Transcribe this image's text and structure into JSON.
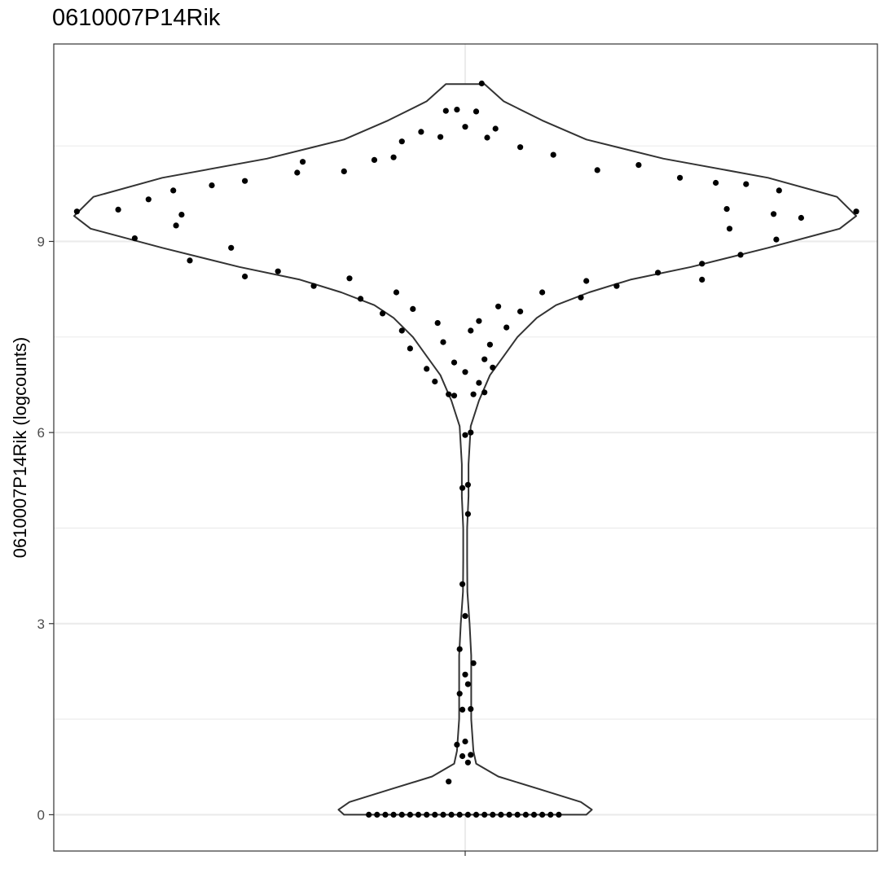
{
  "chart_data": {
    "type": "violin",
    "title": "0610007P14Rik",
    "xlabel": "",
    "ylabel": "0610007P14Rik (logcounts)",
    "ylim": [
      -0.57,
      12.1
    ],
    "yticks": [
      0,
      3,
      6,
      9
    ],
    "ytick_labels": [
      "0",
      "3",
      "6",
      "9"
    ],
    "xticks": [
      ""
    ],
    "grid": true,
    "theme": "bw",
    "colors": {
      "outline": "#333333",
      "points": "#000000",
      "grid": "#ebebeb",
      "panel_border": "#333333"
    },
    "violin_profile": [
      [
        11.47,
        0.07
      ],
      [
        11.2,
        0.14
      ],
      [
        10.9,
        0.28
      ],
      [
        10.6,
        0.44
      ],
      [
        10.3,
        0.72
      ],
      [
        10.0,
        1.1
      ],
      [
        9.7,
        1.35
      ],
      [
        9.4,
        1.42
      ],
      [
        9.2,
        1.36
      ],
      [
        8.9,
        1.1
      ],
      [
        8.6,
        0.82
      ],
      [
        8.4,
        0.6
      ],
      [
        8.2,
        0.45
      ],
      [
        8.0,
        0.33
      ],
      [
        7.8,
        0.26
      ],
      [
        7.5,
        0.19
      ],
      [
        7.2,
        0.14
      ],
      [
        6.9,
        0.09
      ],
      [
        6.5,
        0.05
      ],
      [
        6.1,
        0.02
      ],
      [
        5.5,
        0.012
      ],
      [
        5.0,
        0.012
      ],
      [
        4.5,
        0.007
      ],
      [
        4.0,
        0.007
      ],
      [
        3.5,
        0.008
      ],
      [
        3.0,
        0.016
      ],
      [
        2.5,
        0.022
      ],
      [
        2.0,
        0.022
      ],
      [
        1.5,
        0.022
      ],
      [
        1.0,
        0.03
      ],
      [
        0.8,
        0.04
      ],
      [
        0.6,
        0.12
      ],
      [
        0.4,
        0.27
      ],
      [
        0.2,
        0.42
      ],
      [
        0.08,
        0.46
      ],
      [
        0.0,
        0.44
      ]
    ],
    "points": [
      [
        0.06,
        11.48
      ],
      [
        -0.07,
        11.05
      ],
      [
        -0.03,
        11.07
      ],
      [
        0.04,
        11.04
      ],
      [
        -0.16,
        10.72
      ],
      [
        0.0,
        10.8
      ],
      [
        0.11,
        10.77
      ],
      [
        -0.23,
        10.57
      ],
      [
        -0.09,
        10.64
      ],
      [
        0.08,
        10.63
      ],
      [
        -0.33,
        10.28
      ],
      [
        -0.26,
        10.32
      ],
      [
        0.2,
        10.48
      ],
      [
        0.32,
        10.36
      ],
      [
        -0.59,
        10.25
      ],
      [
        -0.44,
        10.1
      ],
      [
        0.63,
        10.2
      ],
      [
        0.48,
        10.12
      ],
      [
        -0.8,
        9.95
      ],
      [
        -0.61,
        10.08
      ],
      [
        0.78,
        10.0
      ],
      [
        0.91,
        9.92
      ],
      [
        -1.06,
        9.8
      ],
      [
        -0.92,
        9.88
      ],
      [
        1.14,
        9.8
      ],
      [
        1.02,
        9.9
      ],
      [
        -1.41,
        9.47
      ],
      [
        -1.26,
        9.5
      ],
      [
        1.42,
        9.47
      ],
      [
        1.22,
        9.37
      ],
      [
        -1.15,
        9.66
      ],
      [
        -1.03,
        9.42
      ],
      [
        1.12,
        9.43
      ],
      [
        0.95,
        9.51
      ],
      [
        -1.2,
        9.05
      ],
      [
        -1.05,
        9.25
      ],
      [
        1.13,
        9.03
      ],
      [
        0.96,
        9.2
      ],
      [
        -1.0,
        8.7
      ],
      [
        -0.85,
        8.9
      ],
      [
        1.0,
        8.79
      ],
      [
        0.86,
        8.65
      ],
      [
        -0.8,
        8.45
      ],
      [
        -0.68,
        8.53
      ],
      [
        0.86,
        8.4
      ],
      [
        0.7,
        8.51
      ],
      [
        -0.55,
        8.3
      ],
      [
        -0.42,
        8.42
      ],
      [
        0.55,
        8.3
      ],
      [
        0.44,
        8.38
      ],
      [
        -0.38,
        8.1
      ],
      [
        -0.25,
        8.2
      ],
      [
        0.42,
        8.12
      ],
      [
        0.28,
        8.2
      ],
      [
        -0.3,
        7.87
      ],
      [
        -0.19,
        7.94
      ],
      [
        0.2,
        7.9
      ],
      [
        0.12,
        7.98
      ],
      [
        -0.23,
        7.6
      ],
      [
        -0.1,
        7.72
      ],
      [
        0.15,
        7.65
      ],
      [
        0.05,
        7.75
      ],
      [
        -0.2,
        7.32
      ],
      [
        -0.08,
        7.42
      ],
      [
        0.09,
        7.38
      ],
      [
        0.02,
        7.6
      ],
      [
        -0.14,
        7.0
      ],
      [
        -0.04,
        7.1
      ],
      [
        0.07,
        7.15
      ],
      [
        0.1,
        7.02
      ],
      [
        -0.11,
        6.8
      ],
      [
        0.0,
        6.95
      ],
      [
        0.05,
        6.78
      ],
      [
        -0.06,
        6.6
      ],
      [
        0.07,
        6.63
      ],
      [
        -0.04,
        6.58
      ],
      [
        0.03,
        6.6
      ],
      [
        0.0,
        5.96
      ],
      [
        0.02,
        6.0
      ],
      [
        -0.01,
        5.13
      ],
      [
        0.01,
        5.18
      ],
      [
        0.01,
        4.72
      ],
      [
        -0.01,
        3.62
      ],
      [
        0.0,
        3.12
      ],
      [
        -0.02,
        2.6
      ],
      [
        0.03,
        2.38
      ],
      [
        0.0,
        2.2
      ],
      [
        0.01,
        2.05
      ],
      [
        -0.02,
        1.9
      ],
      [
        -0.01,
        1.65
      ],
      [
        0.02,
        1.66
      ],
      [
        -0.03,
        1.1
      ],
      [
        0.0,
        1.15
      ],
      [
        -0.01,
        0.92
      ],
      [
        0.02,
        0.94
      ],
      [
        0.01,
        0.82
      ],
      [
        -0.06,
        0.52
      ],
      [
        -0.35,
        0.0
      ],
      [
        -0.32,
        0.0
      ],
      [
        -0.29,
        0.0
      ],
      [
        -0.26,
        0.0
      ],
      [
        -0.23,
        0.0
      ],
      [
        -0.2,
        0.0
      ],
      [
        -0.17,
        0.0
      ],
      [
        -0.14,
        0.0
      ],
      [
        -0.11,
        0.0
      ],
      [
        -0.08,
        0.0
      ],
      [
        -0.05,
        0.0
      ],
      [
        -0.02,
        0.0
      ],
      [
        0.01,
        0.0
      ],
      [
        0.04,
        0.0
      ],
      [
        0.07,
        0.0
      ],
      [
        0.1,
        0.0
      ],
      [
        0.13,
        0.0
      ],
      [
        0.16,
        0.0
      ],
      [
        0.19,
        0.0
      ],
      [
        0.22,
        0.0
      ],
      [
        0.25,
        0.0
      ],
      [
        0.28,
        0.0
      ],
      [
        0.31,
        0.0
      ],
      [
        0.34,
        0.0
      ]
    ]
  }
}
